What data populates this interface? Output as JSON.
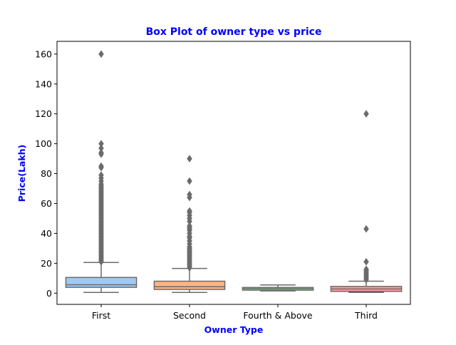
{
  "chart_data": {
    "type": "box",
    "title": "Box Plot of owner type vs price",
    "xlabel": "Owner Type",
    "ylabel": "Price(Lakh)",
    "ylim": [
      -7.5,
      168.5
    ],
    "yticks": [
      0,
      20,
      40,
      60,
      80,
      100,
      120,
      140,
      160
    ],
    "categories": [
      "First",
      "Second",
      "Fourth & Above",
      "Third"
    ],
    "colors": {
      "title": "#0000ff",
      "axis_label": "#0000ff",
      "boxes": [
        "#a1c9f4",
        "#ffb482",
        "#8de5a1",
        "#ff9f9b"
      ],
      "lines": "#6b6b6b"
    },
    "boxes": [
      {
        "category": "First",
        "whisker_low": 0.5,
        "q1": 3.9,
        "median": 5.6,
        "q3": 10.5,
        "whisker_high": 20.5,
        "outliers": [
          21,
          22,
          23,
          24,
          25,
          26,
          27,
          28,
          29,
          30,
          31,
          32,
          33,
          34,
          35,
          36,
          37,
          38,
          39,
          40,
          41,
          42,
          43,
          44,
          45,
          46,
          47,
          48,
          49,
          50,
          51,
          52,
          53,
          54,
          55,
          56,
          57,
          58,
          59,
          60,
          61,
          62,
          63,
          64,
          65,
          66,
          67,
          68,
          69,
          70,
          71,
          72,
          73,
          75,
          77,
          79,
          84,
          85,
          93,
          94,
          97,
          100,
          160
        ]
      },
      {
        "category": "Second",
        "whisker_low": 0.5,
        "q1": 2.5,
        "median": 4.3,
        "q3": 8.0,
        "whisker_high": 16.5,
        "outliers": [
          17,
          18,
          19,
          20,
          21,
          22,
          23,
          24,
          25,
          26,
          27,
          28,
          29,
          30,
          31,
          33,
          35,
          37,
          38,
          40,
          42,
          43,
          44,
          45,
          48,
          50,
          52,
          54,
          55,
          64,
          66,
          75,
          90
        ]
      },
      {
        "category": "Fourth & Above",
        "whisker_low": 1.5,
        "q1": 2.0,
        "median": 3.0,
        "q3": 3.8,
        "whisker_high": 5.5,
        "outliers": []
      },
      {
        "category": "Third",
        "whisker_low": 0.5,
        "q1": 1.2,
        "median": 2.8,
        "q3": 4.5,
        "whisker_high": 8.0,
        "outliers": [
          9,
          10,
          11,
          12,
          13,
          14,
          15,
          16,
          21,
          43,
          120
        ]
      }
    ]
  }
}
